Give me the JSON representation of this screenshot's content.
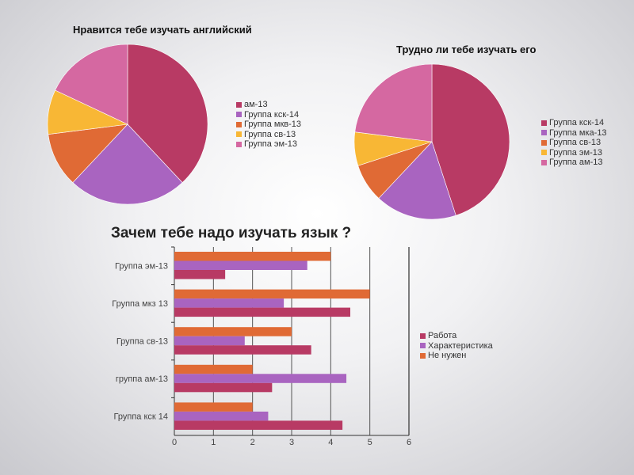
{
  "colors": {
    "c1": "#b83a64",
    "c2": "#a964c0",
    "c3": "#e06a35",
    "c4": "#f8b735",
    "c5": "#d568a1"
  },
  "chart_data": [
    {
      "type": "pie",
      "title": "Нравится тебе изучать английский",
      "labels": [
        "ам-13",
        "Группа кск-14",
        "Группа мкв-13",
        "Группа св-13",
        "Группа эм-13"
      ],
      "values": [
        38,
        24,
        11,
        9,
        18
      ],
      "legend": "right"
    },
    {
      "type": "pie",
      "title": "Трудно ли тебе изучать его",
      "labels": [
        "Группа кск-14",
        "Группа мка-13",
        "Группа св-13",
        "Группа эм-13",
        "Группа ам-13"
      ],
      "values": [
        45,
        17,
        8,
        7,
        23
      ],
      "legend": "right"
    },
    {
      "type": "bar",
      "orientation": "horizontal",
      "title": "Зачем тебе надо изучать язык ?",
      "categories": [
        "Группа эм-13",
        "Группа мкз 13",
        "Группа св-13",
        "группа ам-13",
        "Группа кск 14"
      ],
      "series": [
        {
          "name": "Работа",
          "values": [
            1.3,
            4.5,
            3.5,
            2.5,
            4.3
          ]
        },
        {
          "name": "Характеристика",
          "values": [
            3.4,
            2.8,
            1.8,
            4.4,
            2.4
          ]
        },
        {
          "name": "Не нужен",
          "values": [
            4,
            5,
            3,
            2,
            2
          ]
        }
      ],
      "xlim": [
        0,
        6
      ],
      "xticks": [
        "0",
        "1",
        "2",
        "3",
        "4",
        "5",
        "6"
      ],
      "grid": true,
      "legend": "right"
    }
  ]
}
